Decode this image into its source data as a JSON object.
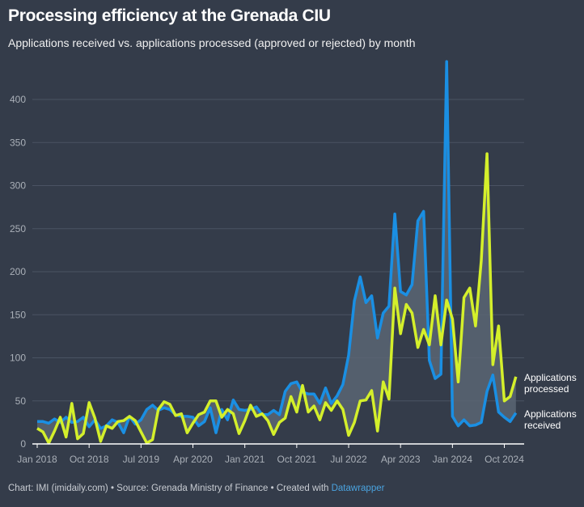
{
  "title": "Processing efficiency at the Grenada CIU",
  "subtitle": "Applications received vs. applications processed (approved or rejected) by month",
  "footer": {
    "text": "Chart: IMI (imidaily.com) • Source: Grenada Ministry of Finance • Created with ",
    "link": "Datawrapper"
  },
  "colors": {
    "received": "#1a8fe3",
    "processed": "#d4ef2b",
    "fill": "#5b6573",
    "grid": "#4a5363"
  },
  "chart_data": {
    "type": "line",
    "title": "Processing efficiency at the Grenada CIU",
    "x_start": "Jan 2018",
    "x_end": "Dec 2024",
    "frequency": "monthly",
    "x_ticks": [
      {
        "index": 0,
        "label": "Jan 2018"
      },
      {
        "index": 9,
        "label": "Oct 2018"
      },
      {
        "index": 18,
        "label": "Jul 2019"
      },
      {
        "index": 27,
        "label": "Apr 2020"
      },
      {
        "index": 36,
        "label": "Jan 2021"
      },
      {
        "index": 45,
        "label": "Oct 2021"
      },
      {
        "index": 54,
        "label": "Jul 2022"
      },
      {
        "index": 63,
        "label": "Apr 2023"
      },
      {
        "index": 72,
        "label": "Jan 2024"
      },
      {
        "index": 81,
        "label": "Oct 2024"
      }
    ],
    "y_ticks": [
      0,
      50,
      100,
      150,
      200,
      250,
      300,
      350,
      400
    ],
    "ylim": [
      0,
      450
    ],
    "grid": true,
    "series": [
      {
        "name": "Applications received",
        "label_lines": [
          "Applications",
          "received"
        ],
        "values": [
          26,
          26,
          24,
          29,
          25,
          31,
          25,
          26,
          31,
          20,
          28,
          18,
          21,
          28,
          25,
          13,
          32,
          23,
          28,
          40,
          45,
          39,
          42,
          40,
          34,
          32,
          32,
          31,
          21,
          26,
          42,
          13,
          40,
          28,
          51,
          40,
          39,
          40,
          43,
          34,
          34,
          39,
          34,
          61,
          70,
          72,
          60,
          58,
          58,
          47,
          65,
          47,
          56,
          69,
          103,
          166,
          194,
          164,
          172,
          123,
          152,
          160,
          267,
          177,
          173,
          185,
          259,
          270,
          97,
          76,
          81,
          444,
          32,
          21,
          28,
          21,
          22,
          25,
          61,
          80,
          37,
          31,
          26,
          36
        ]
      },
      {
        "name": "Applications processed",
        "label_lines": [
          "Applications",
          "processed"
        ],
        "values": [
          18,
          14,
          1,
          15,
          31,
          8,
          47,
          6,
          12,
          48,
          30,
          3,
          21,
          18,
          26,
          27,
          32,
          27,
          14,
          1,
          5,
          40,
          49,
          46,
          33,
          35,
          13,
          24,
          34,
          37,
          50,
          50,
          31,
          40,
          35,
          12,
          27,
          45,
          32,
          35,
          27,
          11,
          25,
          30,
          55,
          37,
          68,
          37,
          44,
          28,
          48,
          39,
          50,
          40,
          10,
          25,
          50,
          51,
          62,
          15,
          72,
          52,
          181,
          128,
          162,
          152,
          112,
          133,
          115,
          172,
          115,
          167,
          145,
          72,
          170,
          181,
          137,
          213,
          337,
          92,
          137,
          50,
          55,
          78
        ]
      }
    ]
  }
}
